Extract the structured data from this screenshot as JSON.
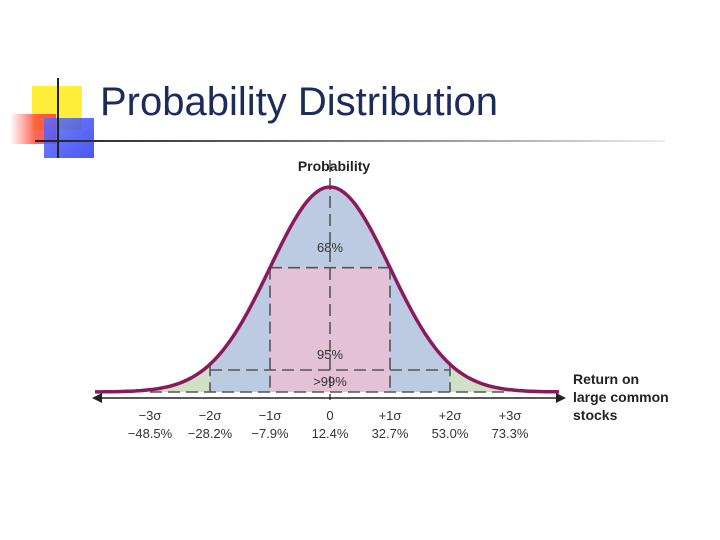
{
  "slide": {
    "title": "Probability Distribution"
  },
  "colors": {
    "title": "#1c2b5a",
    "curve": "#8b1a5c",
    "fill_68": "#e3c1d6",
    "fill_95": "#bccbe2",
    "fill_99": "#cfe0c6",
    "dash": "#555555"
  },
  "chart_data": {
    "type": "area",
    "title": "",
    "ylabel": "Probability",
    "xlabel": "Return on large common stocks",
    "distribution": "normal",
    "mean": 12.4,
    "std_dev": 20.3,
    "x_ticks": [
      {
        "sigma": "−3σ",
        "value": "−48.5%"
      },
      {
        "sigma": "−2σ",
        "value": "−28.2%"
      },
      {
        "sigma": "−1σ",
        "value": "−7.9%"
      },
      {
        "sigma": "0",
        "value": "12.4%"
      },
      {
        "sigma": "+1σ",
        "value": "32.7%"
      },
      {
        "sigma": "+2σ",
        "value": "53.0%"
      },
      {
        "sigma": "+3σ",
        "value": "73.3%"
      }
    ],
    "bands": [
      {
        "label": "68%",
        "range_sigma": [
          -1,
          1
        ]
      },
      {
        "label": "95%",
        "range_sigma": [
          -2,
          2
        ]
      },
      {
        "label": ">99%",
        "range_sigma": [
          -3,
          3
        ]
      }
    ],
    "xlabel_lines": [
      "Return on",
      "large common",
      "stocks"
    ],
    "grid": false,
    "legend": "none"
  }
}
